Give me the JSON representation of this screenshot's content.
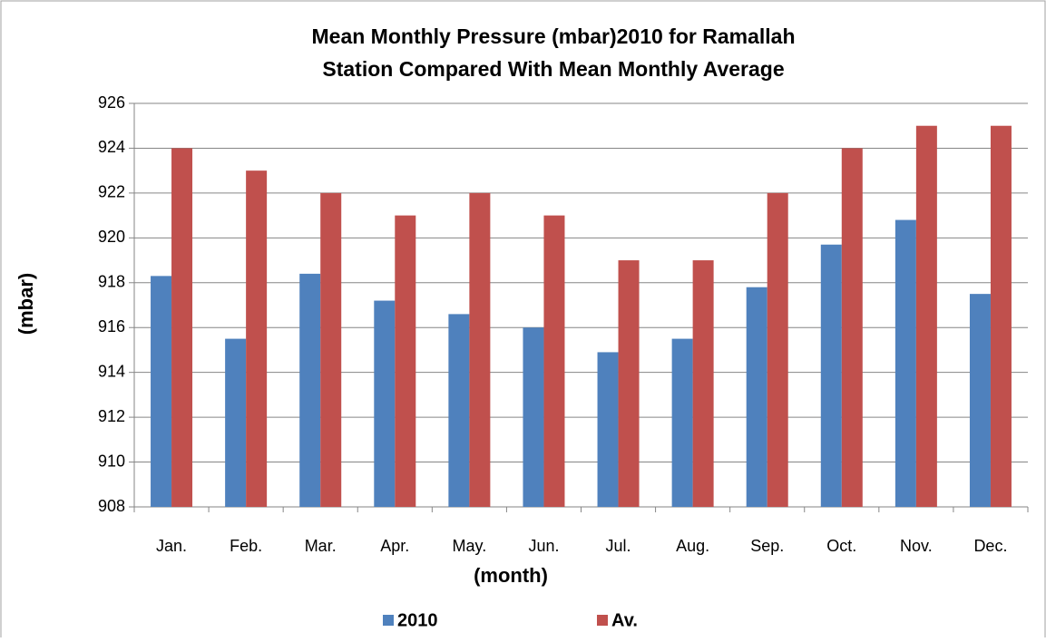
{
  "chart_data": {
    "type": "bar",
    "title": [
      "Mean Monthly Pressure (mbar)2010 for Ramallah",
      "Station Compared  With Mean Monthly Average"
    ],
    "x_label": "(month)",
    "y_label": "(mbar)",
    "categories": [
      "Jan.",
      "Feb.",
      "Mar.",
      "Apr.",
      "May.",
      "Jun.",
      "Jul.",
      "Aug.",
      "Sep.",
      "Oct.",
      "Nov.",
      "Dec."
    ],
    "series": [
      {
        "name": "2010",
        "color": "#4f81bd",
        "values": [
          918.3,
          915.5,
          918.4,
          917.2,
          916.6,
          916.0,
          914.9,
          915.5,
          917.8,
          919.7,
          920.8,
          917.5
        ]
      },
      {
        "name": "Av.",
        "color": "#c0504d",
        "values": [
          924,
          923,
          922,
          921,
          922,
          921,
          919,
          919,
          922,
          924,
          925,
          925
        ]
      }
    ],
    "ylim": [
      908,
      926
    ],
    "yticks": [
      908,
      910,
      912,
      914,
      916,
      918,
      920,
      922,
      924,
      926
    ],
    "grid": true,
    "legend": "bottom"
  }
}
